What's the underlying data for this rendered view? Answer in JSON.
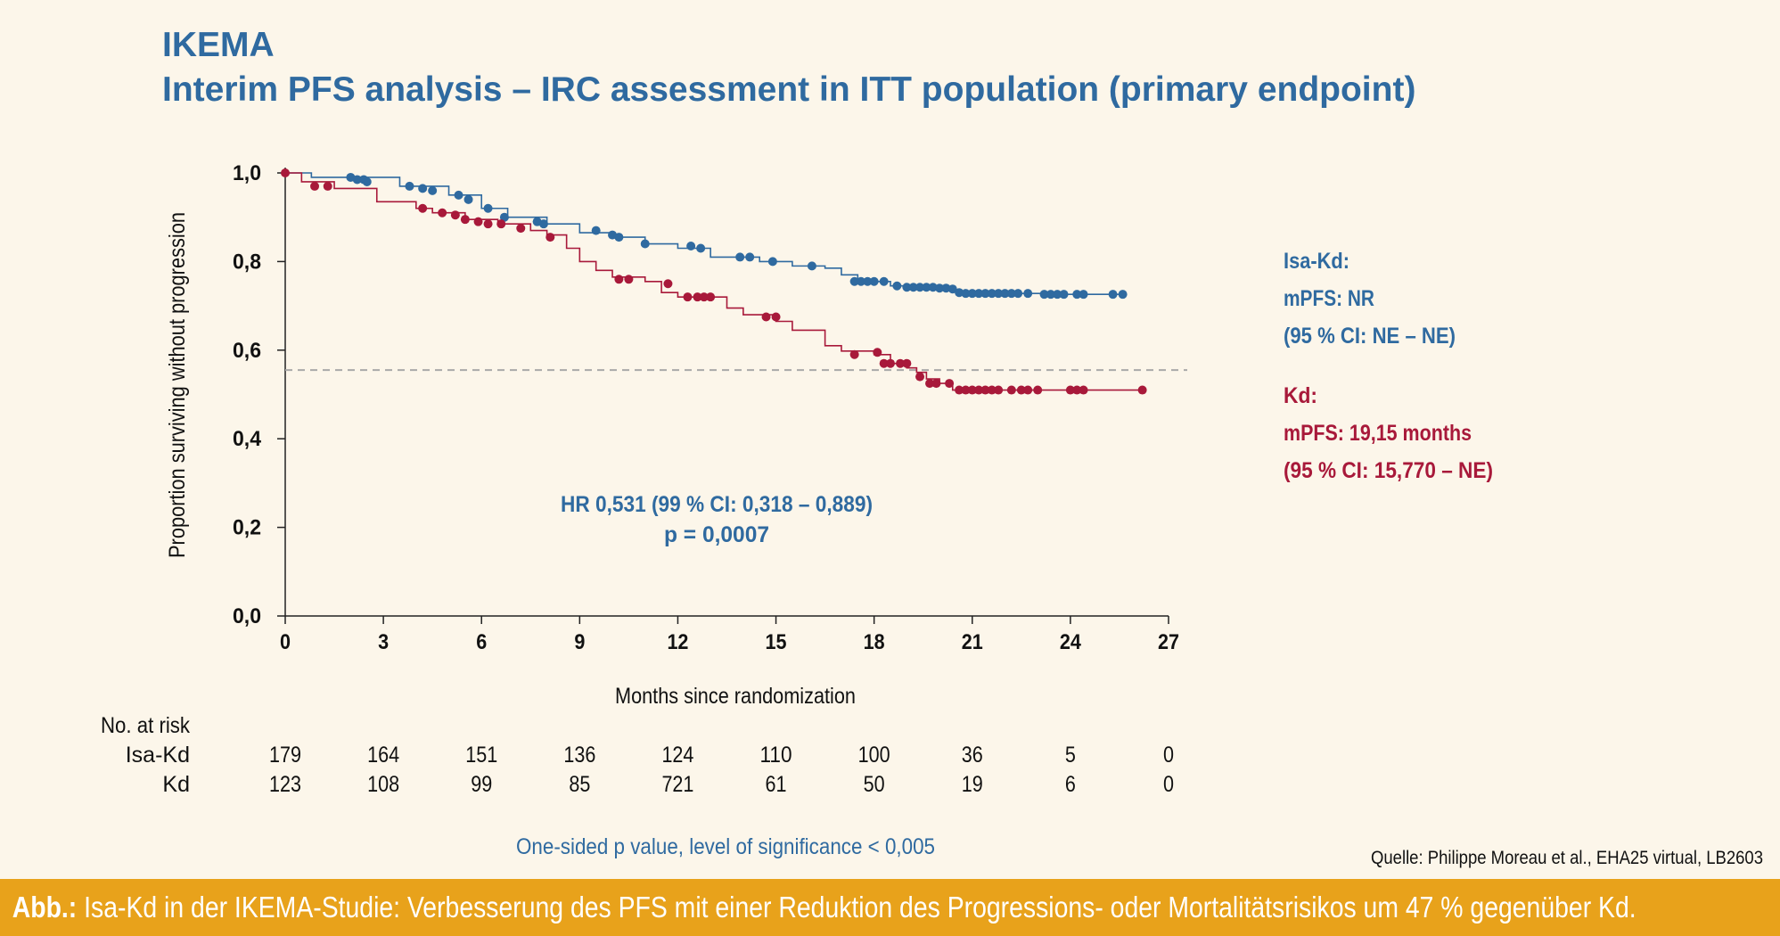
{
  "header": {
    "title_line1": "IKEMA",
    "title_line2": "Interim PFS analysis – IRC assessment in ITT population (primary endpoint)"
  },
  "colors": {
    "isa_kd": "#2f6aa0",
    "kd": "#a8193a",
    "caption_bar": "#e8a21b",
    "background": "#fcf6ea"
  },
  "chart_data": {
    "type": "line",
    "subtype": "kaplan-meier",
    "xlabel": "Months since randomization",
    "ylabel": "Proportion surviving without progression",
    "xlim": [
      0,
      27
    ],
    "ylim": [
      0,
      1.0
    ],
    "x_ticks": [
      "0",
      "3",
      "6",
      "9",
      "12",
      "15",
      "18",
      "21",
      "24",
      "27"
    ],
    "y_ticks": [
      "0,0",
      "0,2",
      "0,4",
      "0,6",
      "0,8",
      "1,0"
    ],
    "reference_line_y": 0.555,
    "series": [
      {
        "name": "Isa-Kd",
        "color": "#2f6aa0",
        "points": [
          [
            0,
            1.0
          ],
          [
            0.8,
            0.99
          ],
          [
            2.0,
            0.99
          ],
          [
            3.5,
            0.97
          ],
          [
            5.0,
            0.95
          ],
          [
            6.0,
            0.92
          ],
          [
            6.8,
            0.9
          ],
          [
            8.0,
            0.885
          ],
          [
            9.0,
            0.865
          ],
          [
            10.0,
            0.855
          ],
          [
            11.0,
            0.84
          ],
          [
            12.0,
            0.83
          ],
          [
            13.0,
            0.81
          ],
          [
            14.5,
            0.8
          ],
          [
            15.5,
            0.79
          ],
          [
            16.5,
            0.785
          ],
          [
            17.0,
            0.77
          ],
          [
            17.5,
            0.755
          ],
          [
            18.5,
            0.745
          ],
          [
            19.5,
            0.74
          ],
          [
            20.5,
            0.73
          ],
          [
            21.5,
            0.728
          ],
          [
            23.5,
            0.726
          ],
          [
            25.5,
            0.726
          ]
        ],
        "censored": [
          [
            2.0,
            0.99
          ],
          [
            2.2,
            0.985
          ],
          [
            2.4,
            0.985
          ],
          [
            2.5,
            0.98
          ],
          [
            3.8,
            0.97
          ],
          [
            4.2,
            0.965
          ],
          [
            4.5,
            0.96
          ],
          [
            5.3,
            0.95
          ],
          [
            5.6,
            0.94
          ],
          [
            6.2,
            0.92
          ],
          [
            6.7,
            0.9
          ],
          [
            7.7,
            0.89
          ],
          [
            7.9,
            0.885
          ],
          [
            9.5,
            0.87
          ],
          [
            10.0,
            0.86
          ],
          [
            10.2,
            0.855
          ],
          [
            11.0,
            0.84
          ],
          [
            12.4,
            0.835
          ],
          [
            12.7,
            0.83
          ],
          [
            13.9,
            0.81
          ],
          [
            14.2,
            0.81
          ],
          [
            14.9,
            0.8
          ],
          [
            16.1,
            0.79
          ],
          [
            17.4,
            0.755
          ],
          [
            17.6,
            0.755
          ],
          [
            17.8,
            0.755
          ],
          [
            18.0,
            0.755
          ],
          [
            18.3,
            0.755
          ],
          [
            18.7,
            0.745
          ],
          [
            19.0,
            0.742
          ],
          [
            19.2,
            0.742
          ],
          [
            19.4,
            0.742
          ],
          [
            19.6,
            0.742
          ],
          [
            19.8,
            0.742
          ],
          [
            20.0,
            0.74
          ],
          [
            20.2,
            0.74
          ],
          [
            20.4,
            0.738
          ],
          [
            20.6,
            0.73
          ],
          [
            20.8,
            0.728
          ],
          [
            21.0,
            0.728
          ],
          [
            21.2,
            0.728
          ],
          [
            21.4,
            0.728
          ],
          [
            21.6,
            0.728
          ],
          [
            21.8,
            0.728
          ],
          [
            22.0,
            0.728
          ],
          [
            22.2,
            0.728
          ],
          [
            22.4,
            0.728
          ],
          [
            22.7,
            0.728
          ],
          [
            23.2,
            0.726
          ],
          [
            23.4,
            0.726
          ],
          [
            23.6,
            0.726
          ],
          [
            23.8,
            0.726
          ],
          [
            24.2,
            0.726
          ],
          [
            24.4,
            0.726
          ],
          [
            25.3,
            0.726
          ],
          [
            25.6,
            0.726
          ]
        ]
      },
      {
        "name": "Kd",
        "color": "#a8193a",
        "points": [
          [
            0,
            1.0
          ],
          [
            0.5,
            0.98
          ],
          [
            1.5,
            0.965
          ],
          [
            2.8,
            0.935
          ],
          [
            4.0,
            0.92
          ],
          [
            4.5,
            0.91
          ],
          [
            5.5,
            0.895
          ],
          [
            6.5,
            0.885
          ],
          [
            7.5,
            0.87
          ],
          [
            8.0,
            0.86
          ],
          [
            8.6,
            0.83
          ],
          [
            9.0,
            0.8
          ],
          [
            9.5,
            0.78
          ],
          [
            10.0,
            0.765
          ],
          [
            11.0,
            0.755
          ],
          [
            11.5,
            0.73
          ],
          [
            12.0,
            0.72
          ],
          [
            13.5,
            0.695
          ],
          [
            14.0,
            0.68
          ],
          [
            15.0,
            0.665
          ],
          [
            15.5,
            0.645
          ],
          [
            16.5,
            0.61
          ],
          [
            17.0,
            0.598
          ],
          [
            18.0,
            0.59
          ],
          [
            18.5,
            0.57
          ],
          [
            19.0,
            0.56
          ],
          [
            19.3,
            0.55
          ],
          [
            19.6,
            0.535
          ],
          [
            20.0,
            0.525
          ],
          [
            20.4,
            0.51
          ],
          [
            22.0,
            0.51
          ],
          [
            24.5,
            0.51
          ],
          [
            26.3,
            0.51
          ]
        ],
        "censored": [
          [
            0,
            1.0
          ],
          [
            0.9,
            0.97
          ],
          [
            1.3,
            0.97
          ],
          [
            4.2,
            0.92
          ],
          [
            4.8,
            0.91
          ],
          [
            5.2,
            0.905
          ],
          [
            5.5,
            0.895
          ],
          [
            5.9,
            0.89
          ],
          [
            6.2,
            0.885
          ],
          [
            6.6,
            0.885
          ],
          [
            7.2,
            0.875
          ],
          [
            8.1,
            0.855
          ],
          [
            10.2,
            0.76
          ],
          [
            10.5,
            0.76
          ],
          [
            11.7,
            0.75
          ],
          [
            12.3,
            0.72
          ],
          [
            12.6,
            0.72
          ],
          [
            12.8,
            0.72
          ],
          [
            13.0,
            0.72
          ],
          [
            14.7,
            0.675
          ],
          [
            15.0,
            0.675
          ],
          [
            17.4,
            0.59
          ],
          [
            18.1,
            0.595
          ],
          [
            18.3,
            0.57
          ],
          [
            18.5,
            0.57
          ],
          [
            18.8,
            0.57
          ],
          [
            19.0,
            0.57
          ],
          [
            19.4,
            0.54
          ],
          [
            19.7,
            0.525
          ],
          [
            19.9,
            0.525
          ],
          [
            20.3,
            0.525
          ],
          [
            20.6,
            0.51
          ],
          [
            20.8,
            0.51
          ],
          [
            21.0,
            0.51
          ],
          [
            21.2,
            0.51
          ],
          [
            21.4,
            0.51
          ],
          [
            21.6,
            0.51
          ],
          [
            21.8,
            0.51
          ],
          [
            22.2,
            0.51
          ],
          [
            22.5,
            0.51
          ],
          [
            22.7,
            0.51
          ],
          [
            23.0,
            0.51
          ],
          [
            24.0,
            0.51
          ],
          [
            24.2,
            0.51
          ],
          [
            24.4,
            0.51
          ],
          [
            26.2,
            0.51
          ]
        ]
      }
    ],
    "annotations": {
      "hr_line1": "HR 0,531 (99 % CI: 0,318 – 0,889)",
      "hr_line2": "p = 0,0007",
      "footnote": "One-sided p value, level of significance < 0,005",
      "source": "Quelle: Philippe Moreau et al., EHA25 virtual, LB2603"
    },
    "legend": {
      "isa_kd_lines": [
        "Isa-Kd:",
        "mPFS: NR",
        "(95 % CI: NE – NE)"
      ],
      "kd_lines": [
        "Kd:",
        "mPFS: 19,15 months",
        "(95 % CI: 15,770 – NE)"
      ]
    },
    "risk_table": {
      "header": "No. at risk",
      "rows": [
        {
          "label": "Isa-Kd",
          "values": [
            "179",
            "164",
            "151",
            "136",
            "124",
            "110",
            "100",
            "36",
            "5",
            "0"
          ]
        },
        {
          "label": "Kd",
          "values": [
            "123",
            "108",
            "99",
            "85",
            "721",
            "61",
            "50",
            "19",
            "6",
            "0"
          ]
        }
      ]
    }
  },
  "caption": {
    "prefix": "Abb.:",
    "text": " Isa-Kd in der IKEMA-Studie: Verbesserung des PFS mit einer Reduktion des Progressions- oder Mortalitätsrisikos um 47 % gegenüber Kd."
  }
}
